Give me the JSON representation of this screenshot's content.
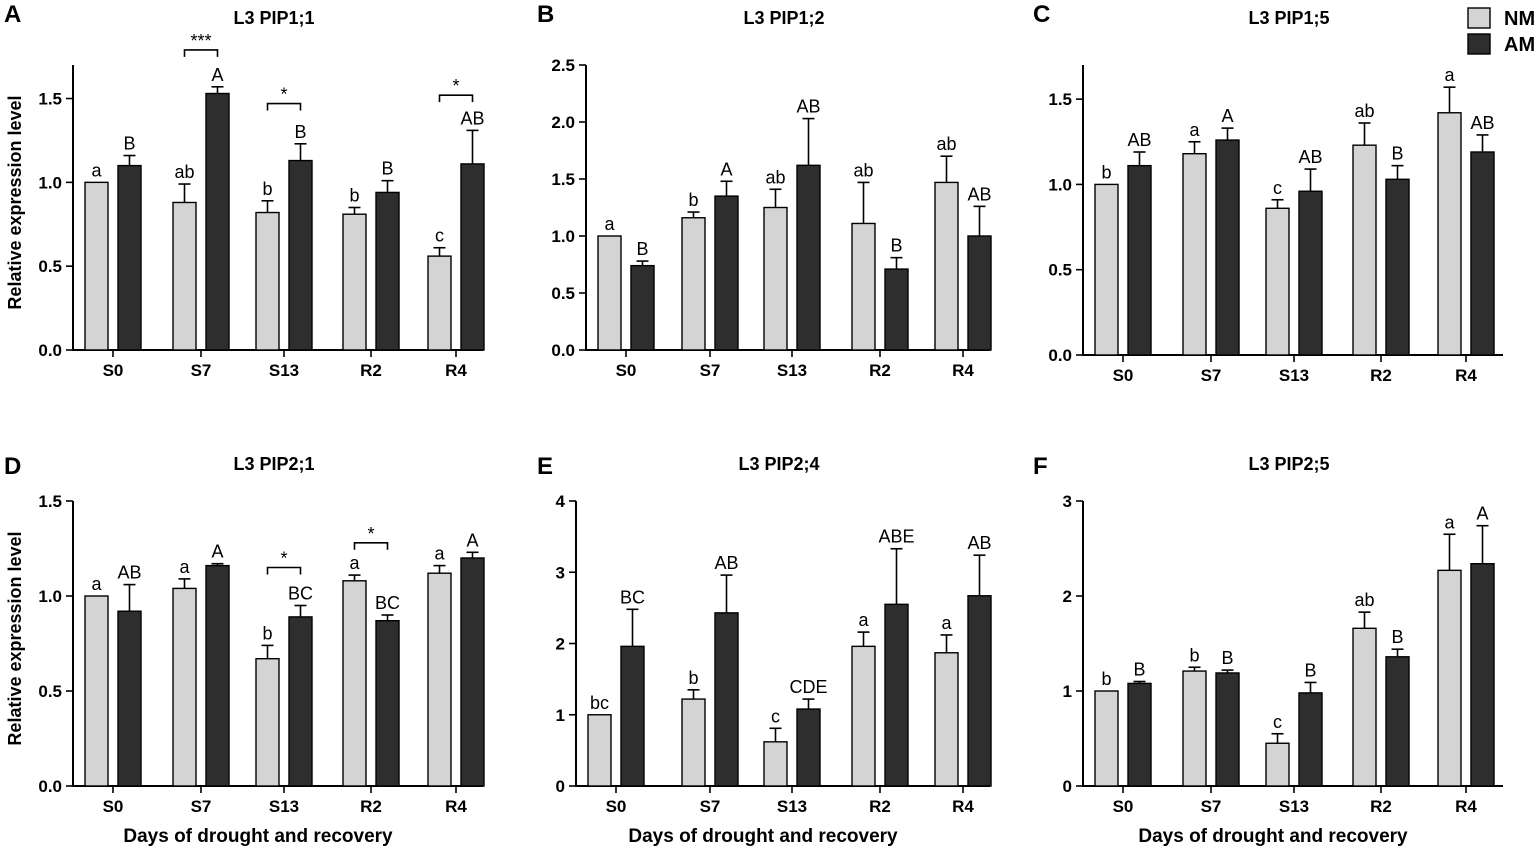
{
  "colors": {
    "NM": "#d4d4d4",
    "AM": "#2e2e2e",
    "axis": "#000000"
  },
  "legend": {
    "entries": [
      "NM",
      "AM"
    ],
    "placement": "top-right"
  },
  "common": {
    "ylabel": "Relative expression level",
    "xlabel": "Days of drought and recovery",
    "categories": [
      "S0",
      "S7",
      "S13",
      "R2",
      "R4"
    ]
  },
  "chart_data": [
    {
      "panel": "A",
      "type": "bar",
      "title": "L3 PIP1;1",
      "categories": [
        "S0",
        "S7",
        "S13",
        "R2",
        "R4"
      ],
      "ylim": [
        0,
        1.7
      ],
      "yticks": [
        "0.0",
        "0.5",
        "1.0",
        "1.5"
      ],
      "ytick_values": [
        0,
        0.5,
        1.0,
        1.5
      ],
      "series": [
        {
          "name": "NM",
          "values": [
            1.0,
            0.88,
            0.82,
            0.81,
            0.56
          ],
          "errors": [
            0,
            0.11,
            0.07,
            0.04,
            0.05
          ],
          "labels": [
            "a",
            "ab",
            "b",
            "b",
            "c"
          ]
        },
        {
          "name": "AM",
          "values": [
            1.1,
            1.53,
            1.13,
            0.94,
            1.11
          ],
          "errors": [
            0.06,
            0.04,
            0.1,
            0.07,
            0.2
          ],
          "labels": [
            "B",
            "A",
            "B",
            "B",
            "AB"
          ]
        }
      ],
      "significance": [
        {
          "category": "S7",
          "label": "***",
          "level": 1.79
        },
        {
          "category": "S13",
          "label": "*",
          "level": 1.47
        },
        {
          "category": "R4",
          "label": "*",
          "level": 1.52
        }
      ],
      "ylabel": "Relative expression level",
      "xlabel": ""
    },
    {
      "panel": "B",
      "type": "bar",
      "title": "L3 PIP1;2",
      "categories": [
        "S0",
        "S7",
        "S13",
        "R2",
        "R4"
      ],
      "ylim": [
        0,
        2.5
      ],
      "yticks": [
        "0.0",
        "0.5",
        "1.0",
        "1.5",
        "2.0",
        "2.5"
      ],
      "ytick_values": [
        0,
        0.5,
        1.0,
        1.5,
        2.0,
        2.5
      ],
      "series": [
        {
          "name": "NM",
          "values": [
            1.0,
            1.16,
            1.25,
            1.11,
            1.47
          ],
          "errors": [
            0,
            0.05,
            0.16,
            0.36,
            0.23
          ],
          "labels": [
            "a",
            "b",
            "ab",
            "ab",
            "ab"
          ]
        },
        {
          "name": "AM",
          "values": [
            0.74,
            1.35,
            1.62,
            0.71,
            1.0
          ],
          "errors": [
            0.04,
            0.13,
            0.41,
            0.1,
            0.26
          ],
          "labels": [
            "B",
            "A",
            "AB",
            "B",
            "AB"
          ]
        }
      ],
      "significance": [],
      "ylabel": "",
      "xlabel": ""
    },
    {
      "panel": "C",
      "type": "bar",
      "title": "L3 PIP1;5",
      "categories": [
        "S0",
        "S7",
        "S13",
        "R2",
        "R4"
      ],
      "ylim": [
        0,
        1.7
      ],
      "yticks": [
        "0.0",
        "0.5",
        "1.0",
        "1.5"
      ],
      "ytick_values": [
        0,
        0.5,
        1.0,
        1.5
      ],
      "series": [
        {
          "name": "NM",
          "values": [
            1.0,
            1.18,
            0.86,
            1.23,
            1.42
          ],
          "errors": [
            0,
            0.07,
            0.05,
            0.13,
            0.15
          ],
          "labels": [
            "b",
            "a",
            "c",
            "ab",
            "a"
          ]
        },
        {
          "name": "AM",
          "values": [
            1.11,
            1.26,
            0.96,
            1.03,
            1.19
          ],
          "errors": [
            0.08,
            0.07,
            0.13,
            0.08,
            0.1
          ],
          "labels": [
            "AB",
            "A",
            "AB",
            "B",
            "AB"
          ]
        }
      ],
      "significance": [],
      "ylabel": "",
      "xlabel": ""
    },
    {
      "panel": "D",
      "type": "bar",
      "title": "L3 PIP2;1",
      "categories": [
        "S0",
        "S7",
        "S13",
        "R2",
        "R4"
      ],
      "ylim": [
        0,
        1.5
      ],
      "yticks": [
        "0.0",
        "0.5",
        "1.0",
        "1.5"
      ],
      "ytick_values": [
        0,
        0.5,
        1.0,
        1.5
      ],
      "series": [
        {
          "name": "NM",
          "values": [
            1.0,
            1.04,
            0.67,
            1.08,
            1.12
          ],
          "errors": [
            0,
            0.05,
            0.07,
            0.03,
            0.04
          ],
          "labels": [
            "a",
            "a",
            "b",
            "a",
            "a"
          ]
        },
        {
          "name": "AM",
          "values": [
            0.92,
            1.16,
            0.89,
            0.87,
            1.2
          ],
          "errors": [
            0.14,
            0.01,
            0.06,
            0.03,
            0.03
          ],
          "labels": [
            "AB",
            "A",
            "BC",
            "BC",
            "A"
          ]
        }
      ],
      "significance": [
        {
          "category": "S13",
          "label": "*",
          "level": 1.15
        },
        {
          "category": "R2",
          "label": "*",
          "level": 1.28
        }
      ],
      "ylabel": "Relative expression level",
      "xlabel": "Days of drought and recovery"
    },
    {
      "panel": "E",
      "type": "bar",
      "title": "L3 PIP2;4",
      "categories": [
        "S0",
        "S7",
        "S13",
        "R2",
        "R4"
      ],
      "ylim": [
        0,
        4
      ],
      "yticks": [
        "0",
        "1",
        "2",
        "3",
        "4"
      ],
      "ytick_values": [
        0,
        1,
        2,
        3,
        4
      ],
      "series": [
        {
          "name": "NM",
          "values": [
            1.0,
            1.22,
            0.62,
            1.96,
            1.87
          ],
          "errors": [
            0,
            0.13,
            0.19,
            0.2,
            0.25
          ],
          "labels": [
            "bc",
            "b",
            "c",
            "a",
            "a"
          ]
        },
        {
          "name": "AM",
          "values": [
            1.96,
            2.43,
            1.08,
            2.55,
            2.67
          ],
          "errors": [
            0.52,
            0.53,
            0.14,
            0.78,
            0.57
          ],
          "labels": [
            "BC",
            "AB",
            "CDE",
            "ABE",
            "AB"
          ]
        }
      ],
      "significance": [],
      "ylabel": "",
      "xlabel": "Days of drought and recovery"
    },
    {
      "panel": "F",
      "type": "bar",
      "title": "L3 PIP2;5",
      "categories": [
        "S0",
        "S7",
        "S13",
        "R2",
        "R4"
      ],
      "ylim": [
        0,
        3
      ],
      "yticks": [
        "0",
        "1",
        "2",
        "3"
      ],
      "ytick_values": [
        0,
        1,
        2,
        3
      ],
      "series": [
        {
          "name": "NM",
          "values": [
            1.0,
            1.21,
            0.45,
            1.66,
            2.27
          ],
          "errors": [
            0,
            0.04,
            0.1,
            0.17,
            0.38
          ],
          "labels": [
            "b",
            "b",
            "c",
            "ab",
            "a"
          ]
        },
        {
          "name": "AM",
          "values": [
            1.08,
            1.19,
            0.98,
            1.36,
            2.34
          ],
          "errors": [
            0.02,
            0.03,
            0.11,
            0.08,
            0.4
          ],
          "labels": [
            "B",
            "B",
            "B",
            "B",
            "A"
          ]
        }
      ],
      "significance": [],
      "ylabel": "",
      "xlabel": "Days of drought and recovery"
    }
  ]
}
